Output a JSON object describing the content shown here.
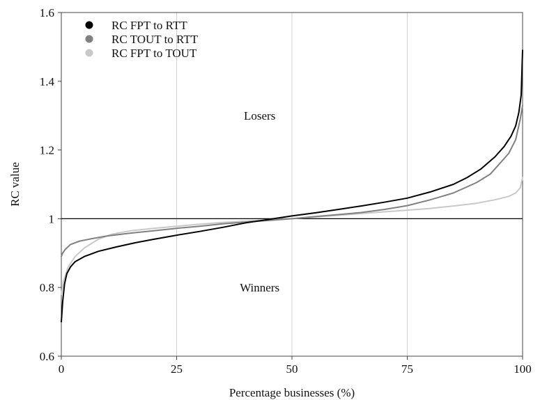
{
  "chart_data": {
    "type": "line",
    "title": "",
    "xlabel": "Percentage businesses (%)",
    "ylabel": "RC value",
    "xlim": [
      0,
      100
    ],
    "ylim": [
      0.6,
      1.6
    ],
    "xticks": [
      0,
      25,
      50,
      75,
      100
    ],
    "yticks": [
      0.6,
      0.8,
      1,
      1.2,
      1.4,
      1.6
    ],
    "xtick_labels": [
      "0",
      "25",
      "50",
      "75",
      "100"
    ],
    "ytick_labels": [
      "0.6",
      "0.8",
      "1",
      "1.2",
      "1.4",
      "1.6"
    ],
    "grid": "vertical lines at 25, 50, 75",
    "legend_position": "top-left",
    "reference_line": {
      "y": 1.0
    },
    "annotations": [
      {
        "text": "Losers",
        "x": 43,
        "y": 1.3
      },
      {
        "text": "Winners",
        "x": 43,
        "y": 0.8
      }
    ],
    "series": [
      {
        "name": "RC FPT to RTT",
        "color": "#000000",
        "x": [
          0,
          0.3,
          0.7,
          1.2,
          2,
          3,
          5,
          8,
          12,
          16,
          20,
          25,
          30,
          35,
          40,
          45,
          50,
          55,
          60,
          65,
          70,
          75,
          80,
          85,
          88,
          91,
          94,
          96,
          97.5,
          98.5,
          99.2,
          99.7,
          100
        ],
        "y": [
          0.7,
          0.76,
          0.81,
          0.84,
          0.86,
          0.875,
          0.89,
          0.905,
          0.918,
          0.93,
          0.94,
          0.952,
          0.963,
          0.975,
          0.988,
          0.998,
          1.008,
          1.017,
          1.027,
          1.037,
          1.048,
          1.06,
          1.078,
          1.1,
          1.12,
          1.145,
          1.18,
          1.21,
          1.24,
          1.27,
          1.31,
          1.36,
          1.49
        ]
      },
      {
        "name": "RC TOUT to RTT",
        "color": "#808080",
        "x": [
          0,
          0.3,
          0.8,
          2,
          4,
          7,
          10,
          15,
          20,
          25,
          30,
          35,
          40,
          45,
          50,
          55,
          60,
          65,
          70,
          75,
          80,
          85,
          90,
          93,
          95,
          97,
          98.5,
          99.5,
          100
        ],
        "y": [
          0.89,
          0.9,
          0.91,
          0.925,
          0.935,
          0.943,
          0.95,
          0.958,
          0.965,
          0.972,
          0.978,
          0.985,
          0.99,
          0.995,
          1.0,
          1.006,
          1.012,
          1.018,
          1.027,
          1.038,
          1.055,
          1.075,
          1.105,
          1.13,
          1.16,
          1.19,
          1.23,
          1.29,
          1.33
        ]
      },
      {
        "name": "RC FPT to TOUT",
        "color": "#c8c8c8",
        "x": [
          0,
          0.5,
          1.5,
          3,
          5,
          8,
          11,
          15,
          20,
          25,
          30,
          35,
          40,
          45,
          50,
          55,
          60,
          65,
          70,
          75,
          80,
          85,
          90,
          94,
          97,
          98.5,
          99.5,
          100
        ],
        "y": [
          0.78,
          0.82,
          0.86,
          0.89,
          0.915,
          0.94,
          0.955,
          0.965,
          0.972,
          0.978,
          0.984,
          0.989,
          0.993,
          0.997,
          1.0,
          1.005,
          1.01,
          1.015,
          1.02,
          1.025,
          1.03,
          1.037,
          1.045,
          1.055,
          1.065,
          1.075,
          1.09,
          1.12
        ]
      }
    ]
  }
}
